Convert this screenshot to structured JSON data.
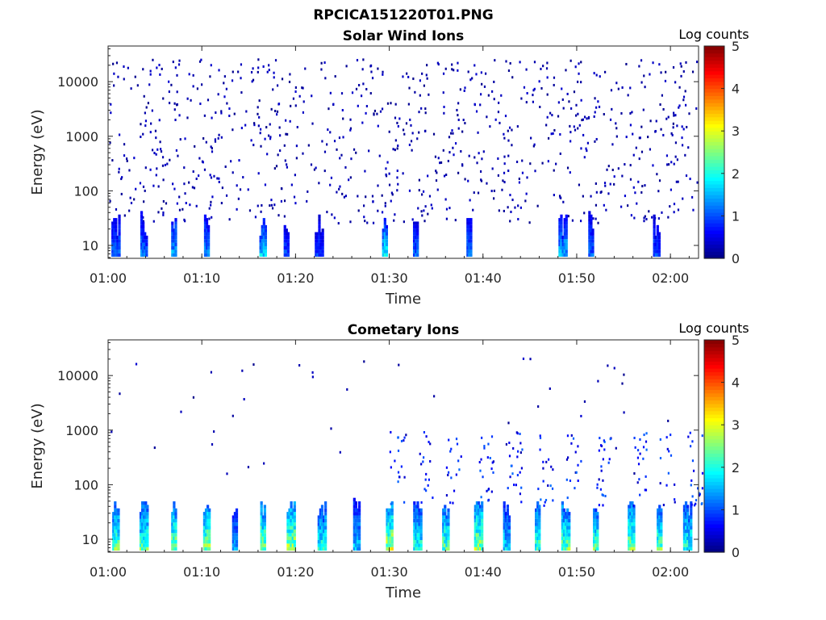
{
  "figure_title": "RPCICA151220T01.PNG",
  "chart_data": [
    {
      "type": "heatmap",
      "title": "Solar Wind Ions",
      "xlabel": "Time",
      "ylabel": "Energy (eV)",
      "x_ticks": [
        "01:00",
        "01:10",
        "01:20",
        "01:30",
        "01:40",
        "01:50",
        "02:00"
      ],
      "xlim_minutes": [
        0,
        63
      ],
      "y_scale": "log",
      "y_ticks": [
        "10",
        "100",
        "1000",
        "10000"
      ],
      "ylim": [
        5.8,
        45000
      ],
      "colorbar": {
        "label": "Log counts",
        "range": [
          0,
          5
        ],
        "ticks": [
          "0",
          "1",
          "2",
          "3",
          "4",
          "5"
        ]
      },
      "grid": false,
      "description": "sparse low-count pixels spread across all energies; bright bursts (log counts 1-2) at 6-40 eV",
      "bursts": [
        {
          "t": 0.8,
          "v": 1.2
        },
        {
          "t": 3.8,
          "v": 1.3
        },
        {
          "t": 7.0,
          "v": 1.6
        },
        {
          "t": 10.5,
          "v": 1.4
        },
        {
          "t": 16.5,
          "v": 1.8
        },
        {
          "t": 19.0,
          "v": 1.1
        },
        {
          "t": 22.5,
          "v": 1.0
        },
        {
          "t": 29.5,
          "v": 1.9
        },
        {
          "t": 32.8,
          "v": 1.2
        },
        {
          "t": 38.5,
          "v": 1.3
        },
        {
          "t": 48.5,
          "v": 1.6
        },
        {
          "t": 51.5,
          "v": 1.2
        },
        {
          "t": 58.5,
          "v": 1.1
        }
      ]
    },
    {
      "type": "heatmap",
      "title": "Cometary Ions",
      "xlabel": "Time",
      "ylabel": "Energy (eV)",
      "x_ticks": [
        "01:00",
        "01:10",
        "01:20",
        "01:30",
        "01:40",
        "01:50",
        "02:00"
      ],
      "xlim_minutes": [
        0,
        63
      ],
      "y_scale": "log",
      "y_ticks": [
        "10",
        "100",
        "1000",
        "10000"
      ],
      "ylim": [
        5.8,
        45000
      ],
      "colorbar": {
        "label": "Log counts",
        "range": [
          0,
          5
        ],
        "ticks": [
          "0",
          "1",
          "2",
          "3",
          "4",
          "5"
        ]
      },
      "grid": false,
      "description": "periodic bursts at 6-40 eV reaching log counts 2-3, with dispersed streaks up to ~1000 eV after 01:30",
      "bursts": [
        {
          "t": 0.8,
          "v": 2.6
        },
        {
          "t": 3.8,
          "v": 2.5
        },
        {
          "t": 7.0,
          "v": 2.7
        },
        {
          "t": 10.5,
          "v": 2.8
        },
        {
          "t": 13.5,
          "v": 1.6
        },
        {
          "t": 16.5,
          "v": 2.7
        },
        {
          "t": 19.5,
          "v": 2.9
        },
        {
          "t": 22.8,
          "v": 2.2
        },
        {
          "t": 26.5,
          "v": 1.7
        },
        {
          "t": 30.0,
          "v": 3.0
        },
        {
          "t": 33.0,
          "v": 2.2
        },
        {
          "t": 36.0,
          "v": 2.5
        },
        {
          "t": 39.5,
          "v": 2.8
        },
        {
          "t": 42.5,
          "v": 1.9
        },
        {
          "t": 45.8,
          "v": 2.4
        },
        {
          "t": 48.8,
          "v": 2.6
        },
        {
          "t": 52.0,
          "v": 2.5
        },
        {
          "t": 55.8,
          "v": 2.6
        },
        {
          "t": 58.8,
          "v": 2.5
        },
        {
          "t": 61.8,
          "v": 2.2
        }
      ]
    }
  ]
}
